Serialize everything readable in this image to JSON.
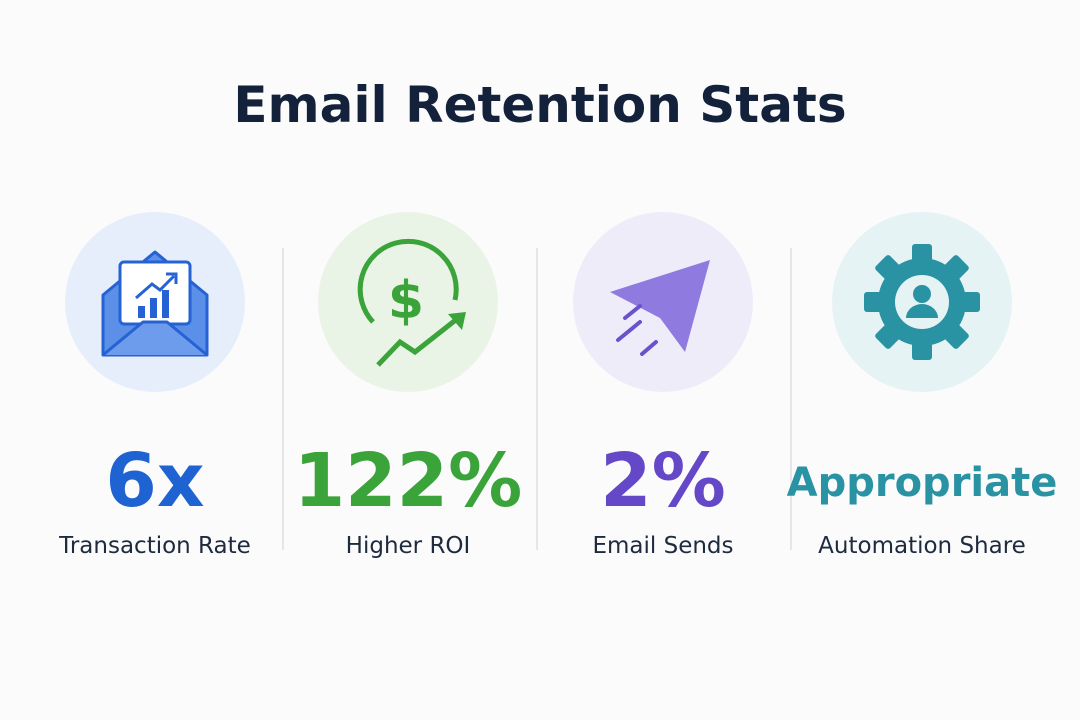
{
  "header": {
    "title": "Email Retention Stats"
  },
  "stats": [
    {
      "value": "6x",
      "label": "Transaction Rate"
    },
    {
      "value": "122%",
      "label": "Higher ROI"
    },
    {
      "value": "2%",
      "label": "Email Sends"
    },
    {
      "value": "Appropriate",
      "label": "Automation Share"
    }
  ]
}
